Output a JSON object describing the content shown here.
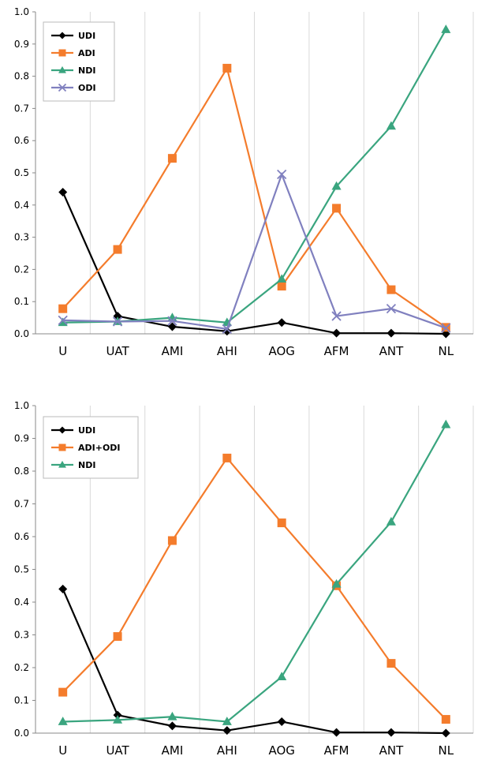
{
  "chart_data": [
    {
      "type": "line",
      "categories": [
        "U",
        "UAT",
        "AMI",
        "AHI",
        "AOG",
        "AFM",
        "ANT",
        "NL"
      ],
      "ylim": [
        0,
        1.0
      ],
      "yticks": [
        "0.0",
        "0.1",
        "0.2",
        "0.3",
        "0.4",
        "0.5",
        "0.6",
        "0.7",
        "0.8",
        "0.9",
        "1.0"
      ],
      "grid": "vertical",
      "legend_position": "top-left",
      "series": [
        {
          "name": "UDI",
          "marker": "diamond",
          "color": "#000000",
          "values": [
            0.44,
            0.055,
            0.022,
            0.008,
            0.035,
            0.002,
            0.002,
            0.0
          ]
        },
        {
          "name": "ADI",
          "marker": "square",
          "color": "#f47c2c",
          "values": [
            0.078,
            0.262,
            0.545,
            0.825,
            0.148,
            0.39,
            0.137,
            0.02
          ]
        },
        {
          "name": "NDI",
          "marker": "triangle",
          "color": "#3aa57f",
          "values": [
            0.035,
            0.038,
            0.05,
            0.035,
            0.17,
            0.458,
            0.645,
            0.945
          ]
        },
        {
          "name": "ODI",
          "marker": "x",
          "color": "#8080bf",
          "values": [
            0.042,
            0.038,
            0.04,
            0.015,
            0.495,
            0.055,
            0.078,
            0.018
          ]
        }
      ]
    },
    {
      "type": "line",
      "categories": [
        "U",
        "UAT",
        "AMI",
        "AHI",
        "AOG",
        "AFM",
        "ANT",
        "NL"
      ],
      "ylim": [
        0,
        1.0
      ],
      "yticks": [
        "0.0",
        "0.1",
        "0.2",
        "0.3",
        "0.4",
        "0.5",
        "0.6",
        "0.7",
        "0.8",
        "0.9",
        "1.0"
      ],
      "grid": "vertical",
      "legend_position": "top-left",
      "series": [
        {
          "name": "UDI",
          "marker": "diamond",
          "color": "#000000",
          "values": [
            0.44,
            0.055,
            0.022,
            0.008,
            0.035,
            0.002,
            0.002,
            0.0
          ]
        },
        {
          "name": "ADI+ODI",
          "marker": "square",
          "color": "#f47c2c",
          "values": [
            0.125,
            0.295,
            0.588,
            0.84,
            0.642,
            0.45,
            0.213,
            0.042
          ]
        },
        {
          "name": "NDI",
          "marker": "triangle",
          "color": "#3aa57f",
          "values": [
            0.035,
            0.04,
            0.05,
            0.035,
            0.172,
            0.455,
            0.645,
            0.942
          ]
        }
      ]
    }
  ]
}
